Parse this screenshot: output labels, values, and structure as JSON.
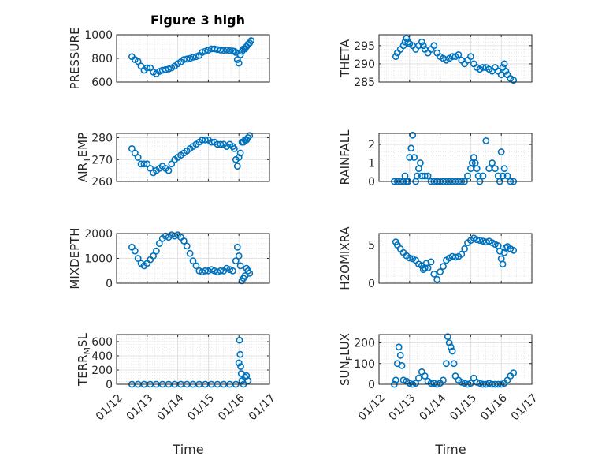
{
  "figure": {
    "title": "Figure 3 high",
    "xlabel": "Time",
    "marker_color": "#0072BD",
    "grid": true,
    "xticks": [
      "01/12",
      "01/13",
      "01/14",
      "01/15",
      "01/16",
      "01/17"
    ]
  },
  "chart_data": [
    {
      "type": "scatter",
      "ylabel": "PRESSURE",
      "ylim": [
        600,
        1000
      ],
      "yticks": [
        "600",
        "800",
        "1000"
      ],
      "x": [
        12.5,
        12.6,
        12.7,
        12.8,
        12.9,
        13.0,
        13.1,
        13.2,
        13.3,
        13.4,
        13.5,
        13.6,
        13.7,
        13.8,
        13.9,
        14.0,
        14.1,
        14.2,
        14.3,
        14.4,
        14.5,
        14.6,
        14.7,
        14.8,
        14.9,
        15.0,
        15.1,
        15.2,
        15.3,
        15.4,
        15.5,
        15.6,
        15.7,
        15.8,
        15.85,
        15.9,
        15.95,
        16.0,
        16.05,
        16.1,
        16.15,
        16.2,
        16.25,
        16.3,
        16.35,
        16.4
      ],
      "y": [
        815,
        790,
        775,
        735,
        700,
        720,
        720,
        685,
        670,
        690,
        700,
        705,
        710,
        720,
        735,
        755,
        770,
        790,
        795,
        800,
        810,
        815,
        825,
        850,
        860,
        870,
        880,
        880,
        875,
        870,
        868,
        870,
        865,
        862,
        860,
        850,
        790,
        760,
        830,
        860,
        880,
        880,
        900,
        920,
        930,
        950
      ]
    },
    {
      "type": "scatter",
      "ylabel": "THETA",
      "ylim": [
        285,
        298
      ],
      "yticks": [
        "285",
        "290",
        "295"
      ],
      "x": [
        12.55,
        12.6,
        12.7,
        12.8,
        12.85,
        12.9,
        12.95,
        13.0,
        13.1,
        13.2,
        13.3,
        13.4,
        13.45,
        13.5,
        13.6,
        13.7,
        13.8,
        13.9,
        14.0,
        14.1,
        14.2,
        14.3,
        14.4,
        14.5,
        14.6,
        14.7,
        14.8,
        14.9,
        15.0,
        15.1,
        15.2,
        15.3,
        15.4,
        15.5,
        15.6,
        15.7,
        15.8,
        15.9,
        16.0,
        16.05,
        16.1,
        16.15,
        16.2,
        16.3,
        16.4
      ],
      "y": [
        292,
        293,
        294,
        295,
        296,
        297,
        296,
        295.5,
        295,
        294,
        295,
        296,
        295,
        294,
        293,
        294,
        295,
        293,
        292,
        291.5,
        291,
        291.5,
        292,
        292,
        292.5,
        291,
        290,
        291,
        292,
        290,
        289,
        288.5,
        289,
        289,
        288.5,
        288,
        289,
        288,
        287,
        289,
        290,
        288,
        287,
        286,
        285.5
      ]
    },
    {
      "type": "scatter",
      "ylabel": "AIR_TEMP",
      "ylim": [
        260,
        282
      ],
      "yticks": [
        "260",
        "270",
        "280"
      ],
      "x": [
        12.5,
        12.6,
        12.7,
        12.8,
        12.9,
        13.0,
        13.1,
        13.2,
        13.3,
        13.4,
        13.5,
        13.6,
        13.7,
        13.8,
        13.9,
        14.0,
        14.1,
        14.2,
        14.3,
        14.4,
        14.5,
        14.6,
        14.7,
        14.8,
        14.9,
        15.0,
        15.1,
        15.2,
        15.3,
        15.4,
        15.5,
        15.6,
        15.7,
        15.8,
        15.85,
        15.9,
        15.95,
        16.0,
        16.05,
        16.1,
        16.15,
        16.2,
        16.25,
        16.3,
        16.35
      ],
      "y": [
        275,
        273,
        271,
        268,
        268,
        268,
        266,
        264,
        265,
        266,
        267,
        266,
        265,
        268,
        270,
        271,
        272,
        273,
        274,
        275,
        276,
        277,
        278,
        279,
        279,
        279,
        278,
        278,
        277,
        277,
        277,
        276,
        277,
        276,
        275,
        270,
        267,
        271,
        273,
        278,
        278,
        279,
        279,
        280,
        281
      ]
    },
    {
      "type": "scatter",
      "ylabel": "RAINFALL",
      "ylim": [
        0,
        2.6
      ],
      "yticks": [
        "0",
        "1",
        "2"
      ],
      "x": [
        12.5,
        12.6,
        12.7,
        12.8,
        12.85,
        12.9,
        12.95,
        13.0,
        13.05,
        13.1,
        13.15,
        13.2,
        13.25,
        13.3,
        13.35,
        13.4,
        13.5,
        13.6,
        13.7,
        13.8,
        13.9,
        14.0,
        14.1,
        14.2,
        14.3,
        14.4,
        14.5,
        14.6,
        14.7,
        14.8,
        14.9,
        15.0,
        15.05,
        15.1,
        15.15,
        15.2,
        15.25,
        15.3,
        15.4,
        15.5,
        15.6,
        15.7,
        15.8,
        15.9,
        15.95,
        16.0,
        16.05,
        16.1,
        16.2,
        16.3,
        16.4
      ],
      "y": [
        0,
        0,
        0,
        0,
        0.3,
        0,
        0,
        1.3,
        1.8,
        2.5,
        1.3,
        0,
        0.3,
        0.7,
        1.0,
        0.3,
        0.3,
        0.3,
        0,
        0,
        0,
        0,
        0,
        0,
        0,
        0,
        0,
        0,
        0,
        0,
        0.3,
        0.7,
        1.0,
        1.3,
        1.0,
        0.7,
        0.3,
        0,
        0.3,
        2.2,
        0.7,
        1.0,
        0.7,
        0.3,
        0,
        1.6,
        0.3,
        0.7,
        0.3,
        0,
        0
      ]
    },
    {
      "type": "scatter",
      "ylabel": "MIXDEPTH",
      "ylim": [
        0,
        2000
      ],
      "yticks": [
        "0",
        "1000",
        "2000"
      ],
      "x": [
        12.5,
        12.6,
        12.7,
        12.8,
        12.9,
        13.0,
        13.1,
        13.2,
        13.3,
        13.4,
        13.5,
        13.6,
        13.7,
        13.8,
        13.9,
        14.0,
        14.1,
        14.2,
        14.3,
        14.4,
        14.5,
        14.6,
        14.7,
        14.8,
        14.9,
        15.0,
        15.1,
        15.2,
        15.3,
        15.4,
        15.5,
        15.6,
        15.7,
        15.8,
        15.9,
        15.95,
        16.0,
        16.05,
        16.1,
        16.15,
        16.2,
        16.25,
        16.3,
        16.35
      ],
      "y": [
        1450,
        1300,
        1000,
        800,
        700,
        800,
        950,
        1100,
        1300,
        1600,
        1800,
        1900,
        1850,
        1950,
        1900,
        1950,
        1850,
        1700,
        1500,
        1200,
        900,
        700,
        500,
        450,
        500,
        500,
        550,
        500,
        450,
        500,
        500,
        600,
        550,
        500,
        900,
        1450,
        1100,
        700,
        100,
        200,
        300,
        600,
        500,
        400
      ]
    },
    {
      "type": "scatter",
      "ylabel": "H2OMIXRA",
      "ylim": [
        0,
        6.5
      ],
      "yticks": [
        "0",
        "5"
      ],
      "x": [
        12.55,
        12.6,
        12.7,
        12.8,
        12.9,
        13.0,
        13.1,
        13.2,
        13.3,
        13.4,
        13.45,
        13.5,
        13.55,
        13.6,
        13.7,
        13.8,
        13.9,
        14.0,
        14.1,
        14.2,
        14.3,
        14.4,
        14.5,
        14.6,
        14.7,
        14.8,
        14.9,
        15.0,
        15.1,
        15.2,
        15.3,
        15.4,
        15.5,
        15.6,
        15.7,
        15.8,
        15.9,
        15.95,
        16.0,
        16.05,
        16.1,
        16.15,
        16.2,
        16.3,
        16.4
      ],
      "y": [
        5.4,
        5.0,
        4.5,
        4.0,
        3.6,
        3.3,
        3.2,
        3.0,
        2.5,
        2.3,
        1.8,
        2.0,
        2.6,
        2.0,
        2.8,
        1.2,
        0.5,
        1.5,
        2.2,
        3.0,
        3.3,
        3.5,
        3.4,
        3.5,
        3.8,
        4.5,
        5.3,
        5.6,
        5.9,
        5.7,
        5.6,
        5.5,
        5.4,
        5.5,
        5.3,
        5.1,
        4.9,
        4.2,
        3.2,
        2.5,
        4.0,
        4.6,
        4.8,
        4.5,
        4.3
      ]
    },
    {
      "type": "scatter",
      "ylabel": "TERR_MSL",
      "ylim": [
        0,
        700
      ],
      "yticks": [
        "0",
        "200",
        "400",
        "600"
      ],
      "x": [
        12.5,
        12.7,
        12.9,
        13.1,
        13.3,
        13.5,
        13.7,
        13.9,
        14.1,
        14.3,
        14.5,
        14.7,
        14.9,
        15.1,
        15.3,
        15.5,
        15.7,
        15.9,
        16.0,
        16.02,
        16.04,
        16.06,
        16.08,
        16.1,
        16.15,
        16.2,
        16.25,
        16.3
      ],
      "y": [
        0,
        0,
        0,
        0,
        0,
        0,
        0,
        0,
        0,
        0,
        0,
        0,
        0,
        0,
        0,
        0,
        0,
        0,
        300,
        620,
        420,
        250,
        150,
        50,
        0,
        100,
        120,
        50
      ]
    },
    {
      "type": "scatter",
      "ylabel": "SUN_FLUX",
      "ylim": [
        0,
        240
      ],
      "yticks": [
        "0",
        "100",
        "200"
      ],
      "x": [
        12.5,
        12.55,
        12.6,
        12.65,
        12.7,
        12.75,
        12.8,
        12.9,
        13.0,
        13.1,
        13.2,
        13.3,
        13.4,
        13.5,
        13.6,
        13.7,
        13.8,
        13.9,
        14.0,
        14.1,
        14.2,
        14.25,
        14.3,
        14.35,
        14.4,
        14.45,
        14.5,
        14.6,
        14.7,
        14.8,
        14.9,
        15.0,
        15.1,
        15.2,
        15.3,
        15.4,
        15.5,
        15.6,
        15.7,
        15.8,
        15.9,
        16.0,
        16.1,
        16.2,
        16.3,
        16.4
      ],
      "y": [
        0,
        20,
        100,
        180,
        140,
        90,
        20,
        15,
        5,
        0,
        5,
        30,
        60,
        40,
        15,
        5,
        5,
        0,
        5,
        20,
        100,
        230,
        200,
        180,
        160,
        100,
        40,
        20,
        10,
        5,
        0,
        5,
        30,
        10,
        5,
        0,
        0,
        5,
        0,
        0,
        0,
        0,
        5,
        20,
        40,
        55
      ]
    }
  ]
}
